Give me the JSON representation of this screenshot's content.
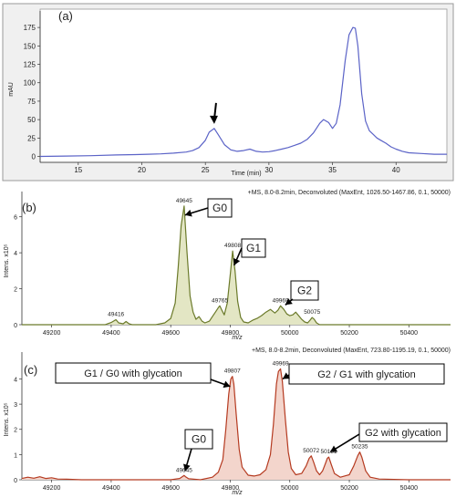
{
  "chart_data": [
    {
      "type": "line",
      "panel_label": "(a)",
      "xlabel": "Time (min)",
      "ylabel": "mAU",
      "xlim": [
        12,
        44
      ],
      "ylim": [
        -8,
        190
      ],
      "xticks": [
        15,
        20,
        25,
        30,
        35,
        40
      ],
      "yticks": [
        0,
        25,
        50,
        75,
        100,
        125,
        150,
        175
      ],
      "grid": false,
      "series": [
        {
          "color": "#5b63c7",
          "x": [
            12.0,
            14.0,
            16.0,
            18.0,
            19.5,
            20.5,
            21.5,
            22.5,
            23.5,
            24.0,
            24.5,
            25.0,
            25.3,
            25.7,
            26.0,
            26.5,
            27.0,
            27.5,
            28.0,
            28.5,
            29.0,
            29.5,
            30.0,
            30.5,
            31.0,
            31.5,
            32.0,
            32.5,
            33.0,
            33.5,
            34.0,
            34.3,
            34.7,
            35.0,
            35.3,
            35.6,
            36.0,
            36.3,
            36.6,
            36.8,
            37.0,
            37.3,
            37.6,
            37.9,
            38.2,
            38.5,
            38.8,
            39.2,
            39.6,
            40.0,
            40.5,
            41.0,
            42.0,
            43.0,
            44.0
          ],
          "y": [
            0,
            0.5,
            1,
            2,
            2.5,
            3,
            3.5,
            4.5,
            6,
            8,
            12,
            22,
            33,
            38,
            30,
            16,
            9,
            7,
            8,
            10,
            7,
            6,
            6.5,
            8,
            10,
            12,
            15,
            18,
            23,
            32,
            45,
            50,
            46,
            38,
            45,
            70,
            130,
            165,
            175,
            174,
            150,
            85,
            48,
            35,
            30,
            25,
            22,
            18,
            13,
            10,
            7,
            5,
            4,
            3,
            3
          ]
        }
      ],
      "annotations": [
        {
          "type": "arrow",
          "x": 25.7,
          "y": 38
        }
      ]
    },
    {
      "type": "line",
      "panel_label": "(b)",
      "title": "+MS, 8.0-8.2min, Deconvoluted (MaxEnt, 1026.50-1467.86, 0.1, 50000)",
      "xlabel": "m/z",
      "ylabel": "Intens. x10⁵",
      "xlim": [
        49100,
        50540
      ],
      "ylim": [
        0,
        7.1
      ],
      "xticks": [
        49200,
        49400,
        49600,
        49800,
        50000,
        50200,
        50400
      ],
      "yticks": [
        0,
        2,
        4,
        6
      ],
      "grid": false,
      "fill": true,
      "series": [
        {
          "color": "#6b7a2a",
          "fill_color": "#e3e6c4",
          "x": [
            49100,
            49380,
            49400,
            49416,
            49425,
            49440,
            49450,
            49460,
            49470,
            49550,
            49580,
            49600,
            49615,
            49625,
            49635,
            49645,
            49655,
            49665,
            49675,
            49685,
            49695,
            49705,
            49715,
            49730,
            49740,
            49750,
            49760,
            49765,
            49772,
            49780,
            49790,
            49800,
            49808,
            49816,
            49825,
            49835,
            49845,
            49860,
            49875,
            49890,
            49905,
            49920,
            49935,
            49950,
            49960,
            49969,
            49980,
            49990,
            50000,
            50010,
            50020,
            50030,
            50040,
            50050,
            50060,
            50068,
            50075,
            50082,
            50090,
            50100,
            50200,
            50540
          ],
          "y": [
            0,
            0,
            0.12,
            0.28,
            0.1,
            0.05,
            0.18,
            0.05,
            0,
            0,
            0.1,
            0.35,
            1.2,
            3.2,
            5.5,
            6.6,
            4.0,
            1.6,
            0.7,
            0.3,
            0.45,
            0.2,
            0.1,
            0.2,
            0.45,
            0.7,
            0.95,
            1.05,
            0.8,
            0.55,
            1.2,
            2.8,
            4.1,
            3.0,
            1.3,
            0.4,
            0.15,
            0.1,
            0.25,
            0.35,
            0.5,
            0.7,
            0.85,
            0.65,
            0.8,
            1.05,
            0.85,
            0.6,
            0.5,
            0.55,
            0.7,
            0.5,
            0.3,
            0.15,
            0.1,
            0.25,
            0.4,
            0.3,
            0.1,
            0,
            0,
            0
          ]
        }
      ],
      "peak_labels": [
        {
          "x": 49416,
          "y": 0.28,
          "text": "49416"
        },
        {
          "x": 49645,
          "y": 6.6,
          "text": "49645"
        },
        {
          "x": 49765,
          "y": 1.05,
          "text": "49765"
        },
        {
          "x": 49808,
          "y": 4.1,
          "text": "49808"
        },
        {
          "x": 49969,
          "y": 1.05,
          "text": "49969"
        },
        {
          "x": 50075,
          "y": 0.4,
          "text": "50075"
        }
      ],
      "callouts": [
        {
          "text": "G0",
          "points_to": [
            49648,
            6.1
          ]
        },
        {
          "text": "G1",
          "points_to": [
            49813,
            3.3
          ]
        },
        {
          "text": "G2",
          "points_to": [
            49985,
            1.1
          ]
        }
      ]
    },
    {
      "type": "line",
      "panel_label": "(c)",
      "title": "+MS, 8.0-8.2min, Deconvoluted (MaxEnt, 723.80-1195.19, 0.1, 50000)",
      "xlabel": "m/z",
      "ylabel": "Intens. x10⁵",
      "xlim": [
        49100,
        50540
      ],
      "ylim": [
        0,
        4.85
      ],
      "xticks": [
        49200,
        49400,
        49600,
        49800,
        50000,
        50200,
        50400
      ],
      "yticks": [
        0,
        1,
        2,
        3,
        4
      ],
      "grid": false,
      "fill": true,
      "series": [
        {
          "color": "#b53a20",
          "fill_color": "#f3d5cc",
          "x": [
            49100,
            49120,
            49140,
            49160,
            49180,
            49200,
            49220,
            49250,
            49300,
            49400,
            49500,
            49600,
            49630,
            49640,
            49645,
            49650,
            49660,
            49700,
            49740,
            49760,
            49775,
            49785,
            49795,
            49802,
            49807,
            49812,
            49820,
            49830,
            49840,
            49860,
            49880,
            49900,
            49920,
            49935,
            49945,
            49955,
            49962,
            49969,
            49975,
            49985,
            49995,
            50005,
            50020,
            50040,
            50055,
            50065,
            50072,
            50080,
            50090,
            50100,
            50110,
            50120,
            50126,
            50131,
            50138,
            50150,
            50170,
            50200,
            50215,
            50228,
            50235,
            50242,
            50255,
            50270,
            50300,
            50400,
            50540
          ],
          "y": [
            0.05,
            0.1,
            0.06,
            0.12,
            0.05,
            0.08,
            0.03,
            0.02,
            0,
            0,
            0,
            0,
            0.05,
            0.13,
            0.17,
            0.12,
            0.04,
            0,
            0.1,
            0.3,
            0.8,
            2.0,
            3.4,
            4.0,
            4.1,
            3.8,
            2.6,
            1.2,
            0.5,
            0.18,
            0.15,
            0.2,
            0.4,
            1.0,
            2.2,
            3.8,
            4.3,
            4.4,
            3.9,
            2.4,
            1.1,
            0.45,
            0.2,
            0.25,
            0.55,
            0.85,
            0.95,
            0.7,
            0.35,
            0.2,
            0.35,
            0.65,
            0.85,
            0.9,
            0.65,
            0.25,
            0.1,
            0.2,
            0.55,
            0.95,
            1.1,
            0.9,
            0.35,
            0.1,
            0.03,
            0,
            0
          ]
        }
      ],
      "peak_labels": [
        {
          "x": 49645,
          "y": 0.17,
          "text": "49645"
        },
        {
          "x": 49807,
          "y": 4.1,
          "text": "49807"
        },
        {
          "x": 49969,
          "y": 4.4,
          "text": "49969"
        },
        {
          "x": 50072,
          "y": 0.95,
          "text": "50072"
        },
        {
          "x": 50131,
          "y": 0.9,
          "text": "50131"
        },
        {
          "x": 50235,
          "y": 1.1,
          "text": "50235"
        }
      ],
      "callouts": [
        {
          "text": "G1 / G0 with glycation",
          "points_to": [
            49800,
            3.7
          ]
        },
        {
          "text": "G2 / G1 with glycation",
          "points_to": [
            49976,
            4.0
          ]
        },
        {
          "text": "G0",
          "points_to": [
            49648,
            0.35
          ]
        },
        {
          "text": "G2 with glycation",
          "points_to": [
            50136,
            1.1
          ]
        }
      ]
    }
  ]
}
